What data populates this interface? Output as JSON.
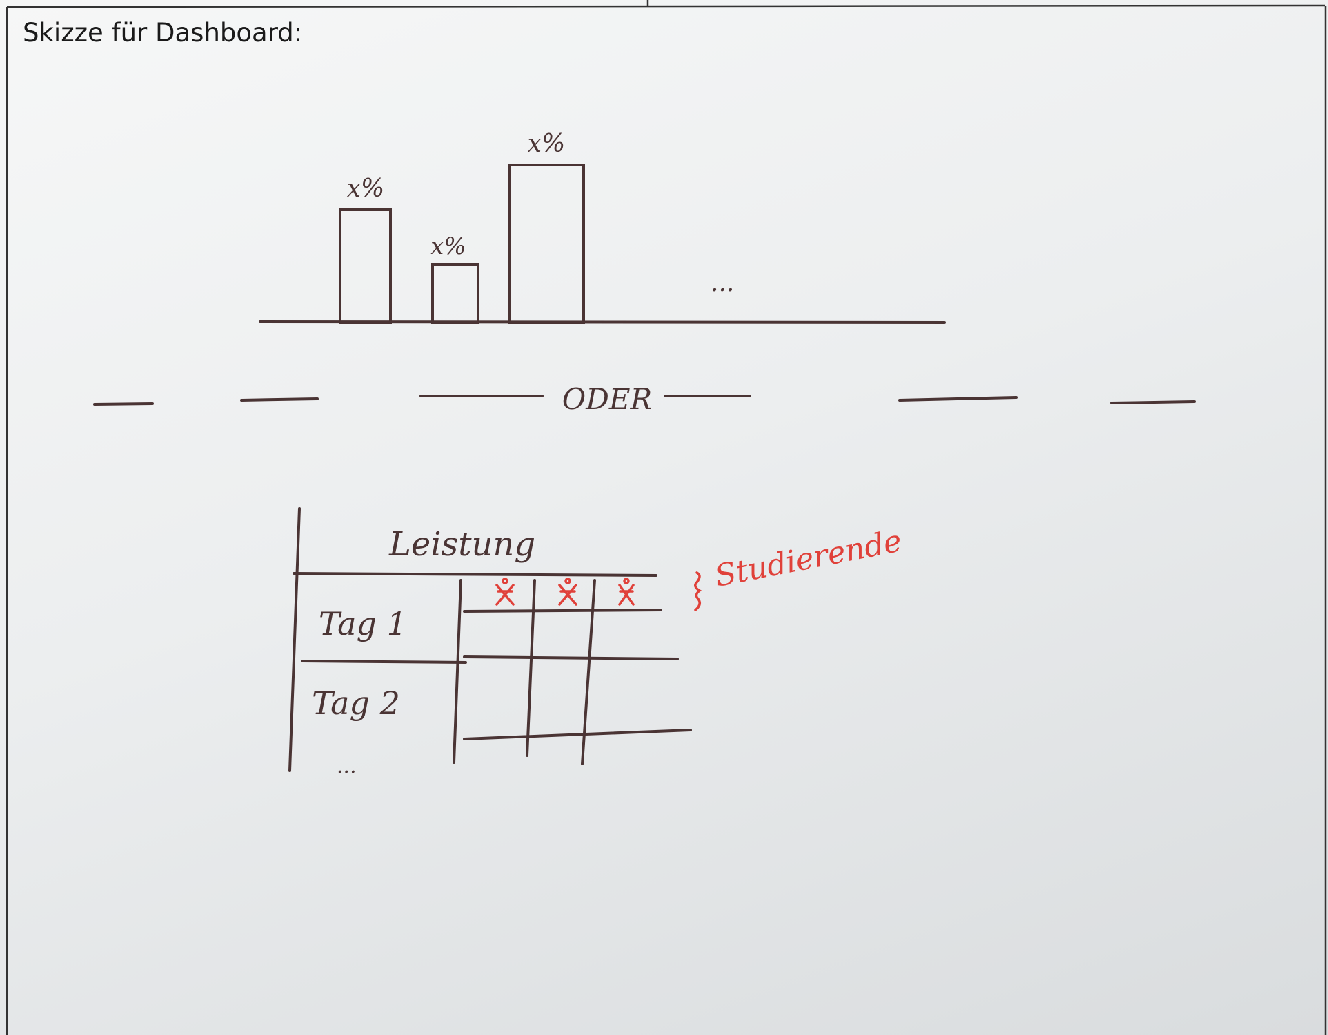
{
  "header": {
    "title": "Skizze für Dashboard:"
  },
  "sketch": {
    "bar_labels": [
      "x%",
      "x%",
      "x%"
    ],
    "bar_more": "...",
    "separator": "ODER",
    "table": {
      "title": "Leistung",
      "rows": [
        "Tag 1",
        "Tag 2"
      ],
      "rows_more": "...",
      "column_label": "Studierende"
    }
  }
}
